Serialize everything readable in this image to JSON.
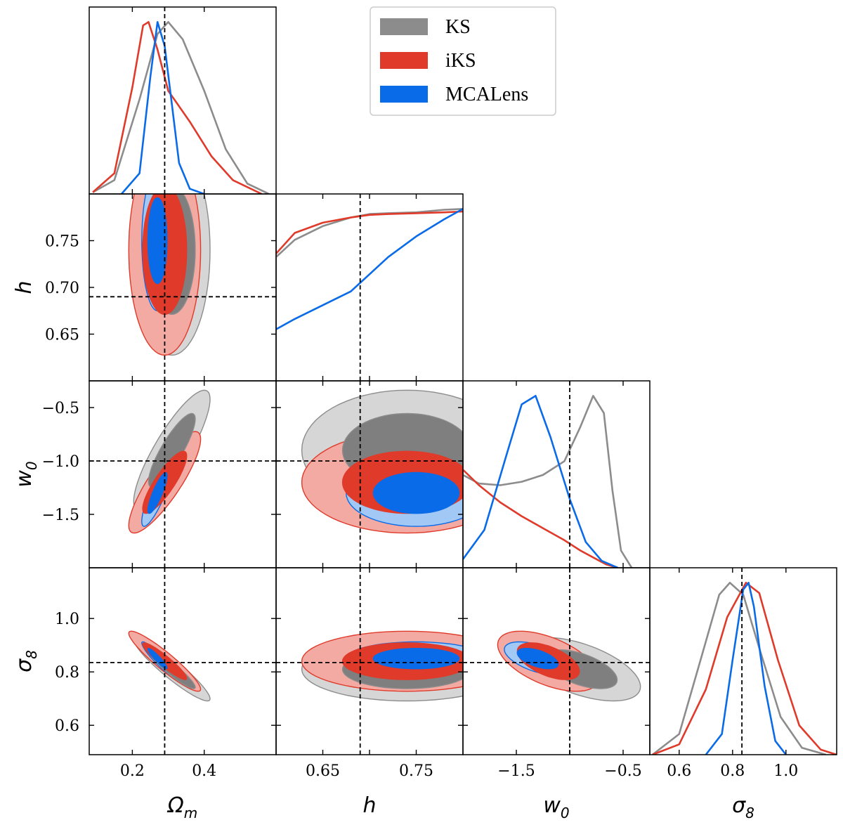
{
  "chart_data": {
    "type": "corner",
    "title": "",
    "parameters": [
      {
        "key": "Om",
        "label": "Ω",
        "sub": "m",
        "range": [
          0.08,
          0.6
        ],
        "ticks": [
          0.2,
          0.4
        ],
        "tick_labels": [
          "0.2",
          "0.4"
        ]
      },
      {
        "key": "h",
        "label": "h",
        "sub": "",
        "range": [
          0.6,
          0.8
        ],
        "ticks": [
          0.65,
          0.7,
          0.75
        ],
        "tick_labels": [
          "0.65",
          "0.70",
          "0.75"
        ],
        "bottom_ticks": [
          0.65,
          0.75
        ],
        "bottom_tick_labels": [
          "0.65",
          "0.75"
        ]
      },
      {
        "key": "w0",
        "label": "w",
        "sub": "0",
        "range": [
          -2.0,
          -0.25
        ],
        "ticks": [
          -1.5,
          -1.0,
          -0.5
        ],
        "tick_labels": [
          "−1.5",
          "−1.0",
          "−0.5"
        ],
        "bottom_ticks": [
          -1.5,
          -0.5
        ],
        "bottom_tick_labels": [
          "−1.5",
          "−0.5"
        ]
      },
      {
        "key": "s8",
        "label": "σ",
        "sub": "8",
        "range": [
          0.49,
          1.19
        ],
        "ticks": [
          0.6,
          0.8,
          1.0
        ],
        "tick_labels": [
          "0.6",
          "0.8",
          "1.0"
        ],
        "bottom_ticks": [
          0.6,
          0.8,
          1.0
        ],
        "bottom_tick_labels": [
          "0.6",
          "0.8",
          "1.0"
        ]
      }
    ],
    "truth": {
      "Om": 0.29,
      "h": 0.69,
      "w0": -1.0,
      "s8": 0.835
    },
    "legend": [
      {
        "name": "KS",
        "color": "#8c8c8c"
      },
      {
        "name": "iKS",
        "color": "#e03a2a"
      },
      {
        "name": "MCALens",
        "color": "#0a6be8"
      }
    ],
    "series": [
      {
        "name": "KS",
        "line_color": "#8c8c8c",
        "inner_color": "#7f7f7f",
        "outer_color": "#d6d6d6",
        "mean": {
          "Om": 0.31,
          "h": 0.74,
          "w0": -0.9,
          "s8": 0.81
        },
        "sigma": {
          "Om": 0.085,
          "h": 0.09,
          "w0": 0.45,
          "s8": 0.095
        },
        "marginals": {
          "Om": [
            [
              0.09,
              0.01
            ],
            [
              0.15,
              0.08
            ],
            [
              0.22,
              0.55
            ],
            [
              0.27,
              0.93
            ],
            [
              0.3,
              1.0
            ],
            [
              0.34,
              0.9
            ],
            [
              0.4,
              0.6
            ],
            [
              0.46,
              0.26
            ],
            [
              0.52,
              0.06
            ],
            [
              0.58,
              0.0
            ]
          ],
          "h": [
            [
              0.6,
              0.72
            ],
            [
              0.62,
              0.82
            ],
            [
              0.65,
              0.9
            ],
            [
              0.68,
              0.95
            ],
            [
              0.7,
              0.97
            ],
            [
              0.72,
              0.975
            ],
            [
              0.75,
              0.98
            ],
            [
              0.78,
              0.995
            ],
            [
              0.8,
              1.0
            ]
          ],
          "w0": [
            [
              -2.0,
              0.54
            ],
            [
              -1.85,
              0.49
            ],
            [
              -1.65,
              0.48
            ],
            [
              -1.45,
              0.5
            ],
            [
              -1.25,
              0.54
            ],
            [
              -1.05,
              0.62
            ],
            [
              -0.9,
              0.82
            ],
            [
              -0.78,
              1.0
            ],
            [
              -0.68,
              0.9
            ],
            [
              -0.6,
              0.45
            ],
            [
              -0.52,
              0.1
            ],
            [
              -0.42,
              0.0
            ]
          ],
          "s8": [
            [
              0.5,
              0.0
            ],
            [
              0.6,
              0.12
            ],
            [
              0.68,
              0.55
            ],
            [
              0.75,
              0.93
            ],
            [
              0.79,
              1.0
            ],
            [
              0.84,
              0.93
            ],
            [
              0.9,
              0.62
            ],
            [
              0.98,
              0.22
            ],
            [
              1.06,
              0.04
            ],
            [
              1.15,
              0.0
            ]
          ]
        }
      },
      {
        "name": "iKS",
        "line_color": "#e03a2a",
        "inner_color": "#e03a2a",
        "outer_color": "#f2aaa3",
        "mean": {
          "Om": 0.29,
          "h": 0.74,
          "w0": -1.2,
          "s8": 0.84
        },
        "sigma": {
          "Om": 0.08,
          "h": 0.09,
          "w0": 0.38,
          "s8": 0.09
        },
        "marginals": {
          "Om": [
            [
              0.09,
              0.01
            ],
            [
              0.15,
              0.12
            ],
            [
              0.2,
              0.62
            ],
            [
              0.23,
              0.98
            ],
            [
              0.245,
              1.0
            ],
            [
              0.27,
              0.84
            ],
            [
              0.3,
              0.6
            ],
            [
              0.36,
              0.42
            ],
            [
              0.42,
              0.22
            ],
            [
              0.48,
              0.08
            ],
            [
              0.56,
              0.0
            ]
          ],
          "h": [
            [
              0.6,
              0.74
            ],
            [
              0.62,
              0.86
            ],
            [
              0.65,
              0.92
            ],
            [
              0.68,
              0.95
            ],
            [
              0.7,
              0.965
            ],
            [
              0.72,
              0.97
            ],
            [
              0.75,
              0.975
            ],
            [
              0.78,
              0.98
            ],
            [
              0.8,
              0.985
            ]
          ],
          "w0": [
            [
              -2.0,
              0.57
            ],
            [
              -1.85,
              0.48
            ],
            [
              -1.65,
              0.38
            ],
            [
              -1.45,
              0.3
            ],
            [
              -1.25,
              0.23
            ],
            [
              -1.05,
              0.16
            ],
            [
              -0.9,
              0.1
            ],
            [
              -0.78,
              0.06
            ],
            [
              -0.66,
              0.02
            ],
            [
              -0.55,
              0.0
            ]
          ],
          "s8": [
            [
              0.5,
              0.0
            ],
            [
              0.6,
              0.06
            ],
            [
              0.7,
              0.38
            ],
            [
              0.78,
              0.8
            ],
            [
              0.85,
              1.0
            ],
            [
              0.9,
              0.94
            ],
            [
              0.97,
              0.55
            ],
            [
              1.05,
              0.17
            ],
            [
              1.13,
              0.03
            ],
            [
              1.19,
              0.0
            ]
          ]
        }
      },
      {
        "name": "MCALens",
        "line_color": "#0a6be8",
        "inner_color": "#0a6be8",
        "outer_color": "#a2c8f5",
        "mean": {
          "Om": 0.27,
          "h": 0.75,
          "w0": -1.3,
          "s8": 0.85
        },
        "sigma": {
          "Om": 0.035,
          "h": 0.06,
          "w0": 0.25,
          "s8": 0.05
        },
        "marginals": {
          "Om": [
            [
              0.17,
              0.0
            ],
            [
              0.22,
              0.12
            ],
            [
              0.25,
              0.68
            ],
            [
              0.27,
              1.0
            ],
            [
              0.29,
              0.86
            ],
            [
              0.31,
              0.52
            ],
            [
              0.33,
              0.18
            ],
            [
              0.36,
              0.03
            ],
            [
              0.4,
              0.0
            ]
          ],
          "h": [
            [
              0.6,
              0.3
            ],
            [
              0.62,
              0.36
            ],
            [
              0.65,
              0.44
            ],
            [
              0.68,
              0.52
            ],
            [
              0.7,
              0.62
            ],
            [
              0.72,
              0.72
            ],
            [
              0.75,
              0.84
            ],
            [
              0.78,
              0.94
            ],
            [
              0.8,
              1.0
            ]
          ],
          "w0": [
            [
              -2.0,
              0.05
            ],
            [
              -1.8,
              0.22
            ],
            [
              -1.6,
              0.64
            ],
            [
              -1.45,
              0.95
            ],
            [
              -1.32,
              1.0
            ],
            [
              -1.18,
              0.76
            ],
            [
              -1.0,
              0.4
            ],
            [
              -0.85,
              0.15
            ],
            [
              -0.7,
              0.04
            ],
            [
              -0.55,
              0.0
            ]
          ],
          "s8": [
            [
              0.7,
              0.0
            ],
            [
              0.76,
              0.12
            ],
            [
              0.8,
              0.55
            ],
            [
              0.84,
              0.96
            ],
            [
              0.86,
              1.0
            ],
            [
              0.88,
              0.86
            ],
            [
              0.92,
              0.4
            ],
            [
              0.96,
              0.08
            ],
            [
              1.0,
              0.0
            ]
          ]
        }
      }
    ]
  }
}
